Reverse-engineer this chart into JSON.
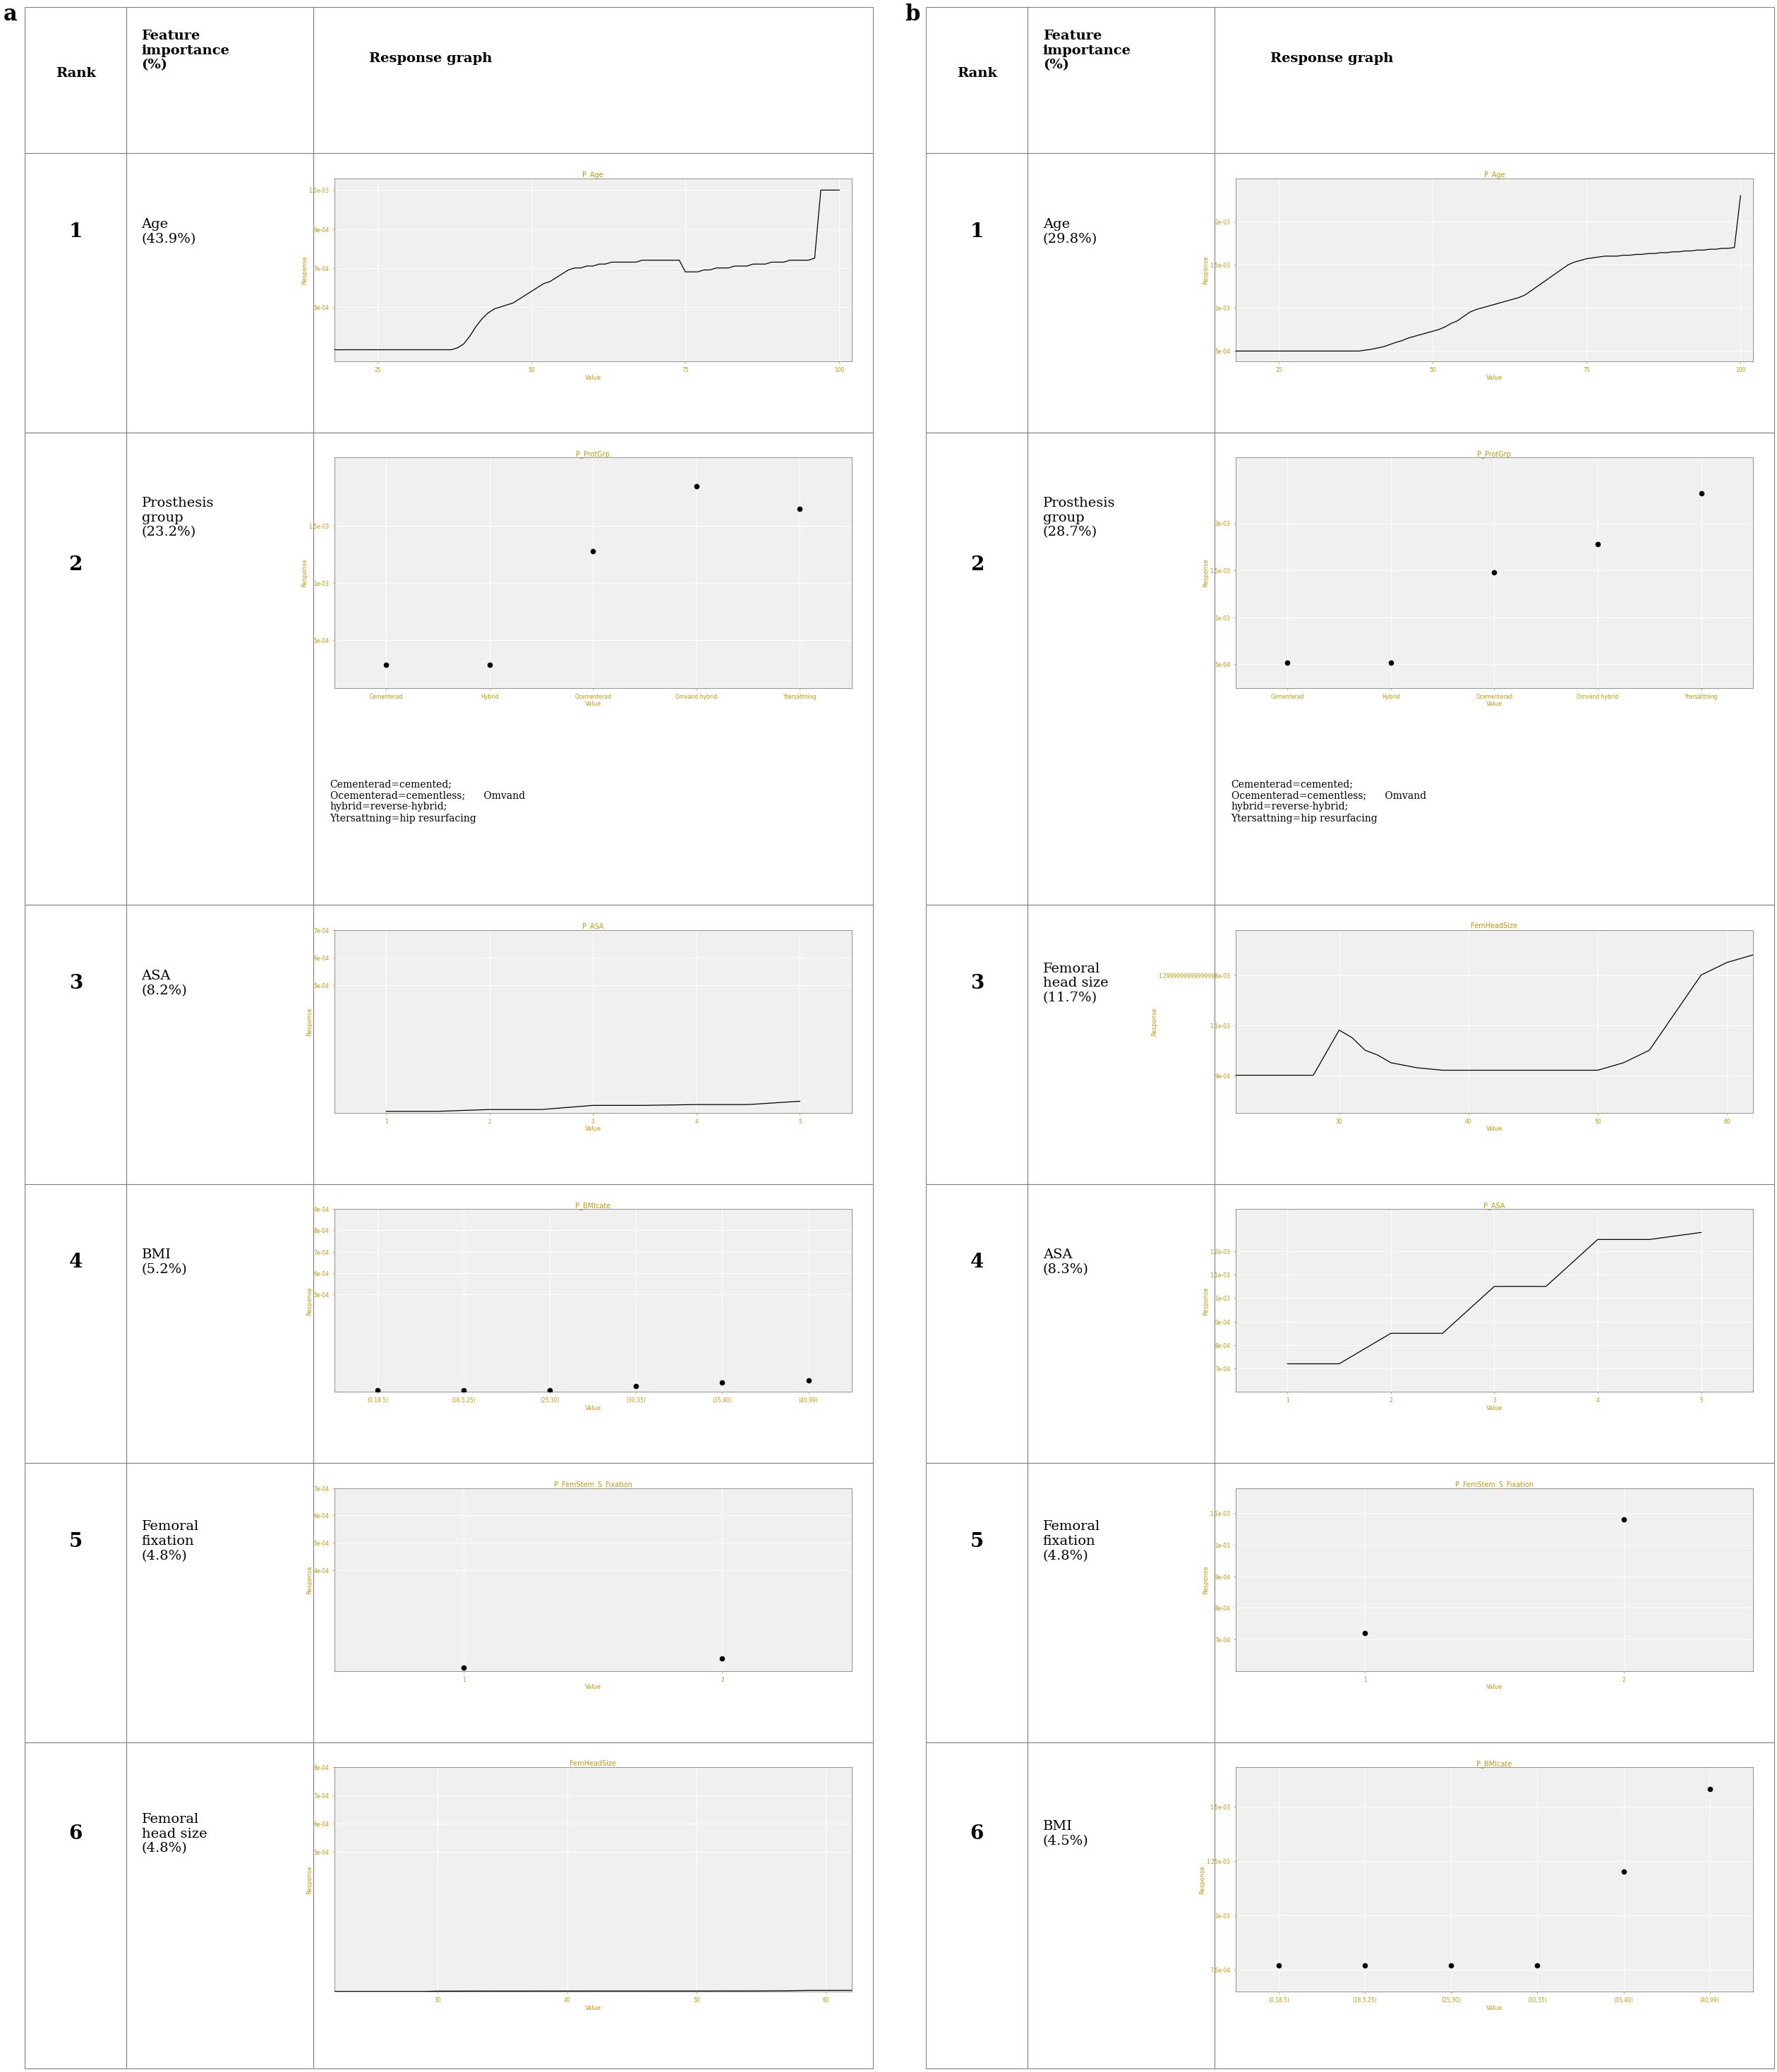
{
  "panel_a": {
    "label": "a",
    "rows": [
      {
        "rank": "1",
        "feature": "Age\n(43.9%)",
        "graph_type": "line",
        "graph_title": "P_Age",
        "xlim": [
          18,
          102
        ],
        "ylim": [
          0.00022,
          0.00116
        ],
        "yticks": [
          0.0005,
          0.0007,
          0.0009,
          0.0011
        ],
        "xticks": [
          25,
          50,
          75,
          100
        ],
        "xlabel": "Value",
        "ylabel": "Response",
        "x": [
          18,
          20,
          22,
          24,
          26,
          28,
          30,
          32,
          34,
          35,
          36,
          37,
          38,
          39,
          40,
          41,
          42,
          43,
          44,
          45,
          46,
          47,
          48,
          49,
          50,
          51,
          52,
          53,
          54,
          55,
          56,
          57,
          58,
          59,
          60,
          61,
          62,
          63,
          64,
          65,
          66,
          67,
          68,
          69,
          70,
          71,
          72,
          73,
          74,
          75,
          76,
          77,
          78,
          79,
          80,
          81,
          82,
          83,
          84,
          85,
          86,
          87,
          88,
          89,
          90,
          91,
          92,
          93,
          94,
          95,
          96,
          97,
          98,
          99,
          100
        ],
        "y": [
          0.00028,
          0.00028,
          0.00028,
          0.00028,
          0.00028,
          0.00028,
          0.00028,
          0.00028,
          0.00028,
          0.00028,
          0.00028,
          0.00028,
          0.00029,
          0.00031,
          0.00035,
          0.0004,
          0.00044,
          0.00047,
          0.00049,
          0.0005,
          0.00051,
          0.00052,
          0.00054,
          0.00056,
          0.00058,
          0.0006,
          0.00062,
          0.00063,
          0.00065,
          0.00067,
          0.00069,
          0.0007,
          0.0007,
          0.00071,
          0.00071,
          0.00072,
          0.00072,
          0.00073,
          0.00073,
          0.00073,
          0.00073,
          0.00073,
          0.00074,
          0.00074,
          0.00074,
          0.00074,
          0.00074,
          0.00074,
          0.00074,
          0.00068,
          0.00068,
          0.00068,
          0.00069,
          0.00069,
          0.0007,
          0.0007,
          0.0007,
          0.00071,
          0.00071,
          0.00071,
          0.00072,
          0.00072,
          0.00072,
          0.00073,
          0.00073,
          0.00073,
          0.00074,
          0.00074,
          0.00074,
          0.00074,
          0.00075,
          0.0011,
          0.0011,
          0.0011,
          0.0011
        ]
      },
      {
        "rank": "2",
        "feature": "Prosthesis\ngroup\n(23.2%)",
        "graph_type": "scatter",
        "graph_title": "P_ProtGrp",
        "xlim": [
          -0.5,
          4.5
        ],
        "ylim": [
          8e-05,
          0.0021
        ],
        "yticks": [
          0.0005,
          0.001,
          0.0015
        ],
        "xtick_labels": [
          "Cementerad",
          "Hybrid",
          "Ocementerad",
          "Omvänd hybrid",
          "Ytersättning"
        ],
        "xlabel": "Value",
        "ylabel": "Response",
        "x": [
          0,
          1,
          2,
          3,
          4
        ],
        "y": [
          0.00028,
          0.00028,
          0.00128,
          0.00185,
          0.00165
        ],
        "annotation": "Cementerad=cemented;\nOcementerad=cementless;      Omvand\nhybrid=reverse-hybrid;\nYtersattning=hip resurfacing"
      },
      {
        "rank": "3",
        "feature": "ASA\n(8.2%)",
        "graph_type": "step",
        "graph_title": "P_ASA",
        "xlim": [
          0.5,
          5.5
        ],
        "ylim": [
          3.8e-05,
          8.8e-05
        ],
        "yticks": [
          0.0005,
          0.0006,
          0.0007
        ],
        "xticks": [
          1,
          2,
          3,
          4,
          5
        ],
        "xlabel": "Value",
        "ylabel": "Response",
        "x": [
          1,
          1.5,
          2,
          2.5,
          3,
          3.5,
          4,
          4.5,
          5
        ],
        "y": [
          4.35e-05,
          4.35e-05,
          5e-05,
          5e-05,
          6.5e-05,
          6.5e-05,
          6.8e-05,
          6.8e-05,
          8e-05
        ]
      },
      {
        "rank": "4",
        "feature": "BMI\n(5.2%)",
        "graph_type": "scatter",
        "graph_title": "P_BMIcate",
        "xlim": [
          -0.5,
          5.5
        ],
        "ylim": [
          4.3e-05,
          0.000103
        ],
        "yticks": [
          0.0005,
          0.0006,
          0.0007,
          0.0008,
          0.0009
        ],
        "xtick_labels": [
          "(0,18.5)",
          "(18.5,25)",
          "(25,30)",
          "(30,35)",
          "(35,40)",
          "(40,99)"
        ],
        "xlabel": "Value",
        "ylabel": "Response",
        "x": [
          0,
          1,
          2,
          3,
          4,
          5
        ],
        "y": [
          5e-05,
          5.02e-05,
          5.05e-05,
          7e-05,
          8.75e-05,
          9.6e-05
        ]
      },
      {
        "rank": "5",
        "feature": "Femoral\nfixation\n(4.8%)",
        "graph_type": "scatter",
        "graph_title": "P_FemStem_S_Fixation",
        "xlim": [
          0.5,
          2.5
        ],
        "ylim": [
          3.2e-05,
          9.6e-05
        ],
        "yticks": [
          0.0004,
          0.0005,
          0.0006,
          0.0007
        ],
        "xticks": [
          1,
          2
        ],
        "xlabel": "Value",
        "ylabel": "Response",
        "x": [
          1,
          2
        ],
        "y": [
          4.4e-05,
          7.8e-05
        ]
      },
      {
        "rank": "6",
        "feature": "Femoral\nhead size\n(4.8%)",
        "graph_type": "line",
        "graph_title": "FemHeadSize",
        "xlim": [
          22,
          62
        ],
        "ylim": [
          4e-06,
          9.8e-06
        ],
        "yticks": [
          0.0005,
          0.0006,
          0.0007,
          0.0008
        ],
        "xticks": [
          30,
          40,
          50,
          60
        ],
        "xlabel": "Value",
        "ylabel": "Response",
        "x": [
          22,
          24,
          26,
          28,
          29,
          30,
          32,
          34,
          36,
          38,
          40,
          42,
          44,
          46,
          48,
          50,
          51,
          52,
          53,
          54,
          55,
          56,
          57,
          58,
          59,
          60,
          61,
          62
        ],
        "y": [
          5.2e-06,
          5.2e-06,
          5.2e-06,
          5.2e-06,
          5.2e-06,
          6.2e-06,
          6.3e-06,
          6.4e-06,
          6.4e-06,
          6.5e-06,
          6.5e-06,
          6.6e-06,
          6.6e-06,
          6.6e-06,
          6.7e-06,
          6.7e-06,
          6.7e-06,
          6.8e-06,
          6.8e-06,
          6.8e-06,
          6.9e-06,
          7.3e-06,
          7.4e-06,
          8.3e-06,
          8.8e-06,
          8.8e-06,
          8.8e-06,
          8.8e-06
        ]
      }
    ]
  },
  "panel_b": {
    "label": "b",
    "rows": [
      {
        "rank": "1",
        "feature": "Age\n(29.8%)",
        "graph_type": "line",
        "graph_title": "P_Age",
        "xlim": [
          18,
          102
        ],
        "ylim": [
          0.00038,
          0.0025
        ],
        "yticks": [
          0.0005,
          0.001,
          0.0015,
          0.002
        ],
        "xticks": [
          25,
          50,
          75,
          100
        ],
        "xlabel": "Value",
        "ylabel": "Response",
        "x": [
          18,
          20,
          22,
          24,
          26,
          28,
          30,
          32,
          34,
          36,
          38,
          40,
          42,
          44,
          45,
          46,
          47,
          48,
          49,
          50,
          51,
          52,
          53,
          54,
          55,
          56,
          57,
          58,
          59,
          60,
          61,
          62,
          63,
          64,
          65,
          66,
          67,
          68,
          69,
          70,
          71,
          72,
          73,
          74,
          75,
          76,
          77,
          78,
          79,
          80,
          81,
          82,
          83,
          84,
          85,
          86,
          87,
          88,
          89,
          90,
          91,
          92,
          93,
          94,
          95,
          96,
          97,
          98,
          99,
          100
        ],
        "y": [
          0.0005,
          0.0005,
          0.0005,
          0.0005,
          0.0005,
          0.0005,
          0.0005,
          0.0005,
          0.0005,
          0.0005,
          0.0005,
          0.00052,
          0.00055,
          0.0006,
          0.00062,
          0.00065,
          0.00067,
          0.00069,
          0.00071,
          0.00073,
          0.00075,
          0.00078,
          0.00082,
          0.00085,
          0.0009,
          0.00095,
          0.00098,
          0.001,
          0.00102,
          0.00104,
          0.00106,
          0.00108,
          0.0011,
          0.00112,
          0.00115,
          0.0012,
          0.00125,
          0.0013,
          0.00135,
          0.0014,
          0.00145,
          0.0015,
          0.00153,
          0.00155,
          0.00157,
          0.00158,
          0.00159,
          0.0016,
          0.0016,
          0.0016,
          0.00161,
          0.00161,
          0.00162,
          0.00162,
          0.00163,
          0.00163,
          0.00164,
          0.00164,
          0.00165,
          0.00165,
          0.00166,
          0.00166,
          0.00167,
          0.00167,
          0.00168,
          0.00168,
          0.00169,
          0.00169,
          0.0017,
          0.0023
        ]
      },
      {
        "rank": "2",
        "feature": "Prosthesis\ngroup\n(28.7%)",
        "graph_type": "scatter",
        "graph_title": "P_ProtGrp",
        "xlim": [
          -0.5,
          4.5
        ],
        "ylim": [
          0.00025,
          0.0027
        ],
        "yticks": [
          0.0005,
          0.001,
          0.0015,
          0.002
        ],
        "xtick_labels": [
          "Cementerad",
          "Hybrid",
          "Ocementerad",
          "Omvänd hybrid",
          "Ytersättning"
        ],
        "xlabel": "Value",
        "ylabel": "Response",
        "x": [
          0,
          1,
          2,
          3,
          4
        ],
        "y": [
          0.00052,
          0.00052,
          0.00148,
          0.00178,
          0.00232
        ],
        "annotation": "Cementerad=cemented;\nOcementerad=cementless;      Omvand\nhybrid=reverse-hybrid;\nYtersattning=hip resurfacing"
      },
      {
        "rank": "3",
        "feature": "Femoral\nhead size\n(11.7%)",
        "graph_type": "line",
        "graph_title": "FemHeadSize",
        "xlim": [
          22,
          62
        ],
        "ylim": [
          0.00075,
          0.00148
        ],
        "yticks": [
          0.0009,
          0.0011,
          0.0013
        ],
        "xticks": [
          30,
          40,
          50,
          60
        ],
        "xlabel": "Value",
        "ylabel": "Response",
        "x": [
          22,
          24,
          26,
          28,
          30,
          31,
          32,
          33,
          34,
          36,
          38,
          40,
          42,
          44,
          46,
          48,
          50,
          52,
          54,
          56,
          58,
          60,
          62
        ],
        "y": [
          0.0009,
          0.0009,
          0.0009,
          0.0009,
          0.00108,
          0.00105,
          0.001,
          0.00098,
          0.00095,
          0.00093,
          0.00092,
          0.00092,
          0.00092,
          0.00092,
          0.00092,
          0.00092,
          0.00092,
          0.00095,
          0.001,
          0.00115,
          0.0013,
          0.00135,
          0.00138
        ]
      },
      {
        "rank": "4",
        "feature": "ASA\n(8.3%)",
        "graph_type": "step",
        "graph_title": "P_ASA",
        "xlim": [
          0.5,
          5.5
        ],
        "ylim": [
          0.0006,
          0.00138
        ],
        "yticks": [
          0.0007,
          0.0008,
          0.0009,
          0.001,
          0.0011,
          0.0012
        ],
        "xticks": [
          1,
          2,
          3,
          4,
          5
        ],
        "xlabel": "Value",
        "ylabel": "Response",
        "x": [
          1,
          1.5,
          2,
          2.5,
          3,
          3.5,
          4,
          4.5,
          5
        ],
        "y": [
          0.00072,
          0.00072,
          0.00085,
          0.00085,
          0.00105,
          0.00105,
          0.00125,
          0.00125,
          0.00128
        ]
      },
      {
        "rank": "5",
        "feature": "Femoral\nfixation\n(4.8%)",
        "graph_type": "scatter",
        "graph_title": "P_FemStem_S_Fixation",
        "xlim": [
          0.5,
          2.5
        ],
        "ylim": [
          0.0006,
          0.00118
        ],
        "yticks": [
          0.0007,
          0.0008,
          0.0009,
          0.001,
          0.0011
        ],
        "xticks": [
          1,
          2
        ],
        "xlabel": "Value",
        "ylabel": "Response",
        "x": [
          1,
          2
        ],
        "y": [
          0.00072,
          0.00108
        ]
      },
      {
        "rank": "6",
        "feature": "BMI\n(4.5%)",
        "graph_type": "scatter",
        "graph_title": "P_BMIcate",
        "xlim": [
          -0.5,
          5.5
        ],
        "ylim": [
          0.00065,
          0.00168
        ],
        "yticks": [
          0.00075,
          0.001,
          0.00125,
          0.0015
        ],
        "xtick_labels": [
          "(0,18.5)",
          "(18.5,25)",
          "(25,30)",
          "(30,35)",
          "(35,40)",
          "(40,99)"
        ],
        "xlabel": "Value",
        "ylabel": "Response",
        "x": [
          0,
          1,
          2,
          3,
          4,
          5
        ],
        "y": [
          0.00077,
          0.00077,
          0.00077,
          0.00077,
          0.0012,
          0.00158
        ]
      }
    ]
  },
  "fig_background": "#ffffff",
  "table_line_color": "#808080",
  "header_bg": "#ffffff",
  "header_separator_color": "#808080",
  "plot_bg": "#f0f0f0",
  "line_color": "#000000",
  "scatter_color": "#000000",
  "title_color": "#c8960a",
  "axis_label_color": "#c8960a",
  "tick_label_color": "#c8960a",
  "grid_color": "#ffffff",
  "plot_border_color": "#808080",
  "rank_fontsize": 20,
  "feature_fontsize": 14,
  "header_fontsize": 14,
  "annotation_fontsize": 10,
  "plot_title_fontsize": 7,
  "plot_label_fontsize": 6,
  "plot_tick_fontsize": 5.5,
  "panel_label_fontsize": 22
}
